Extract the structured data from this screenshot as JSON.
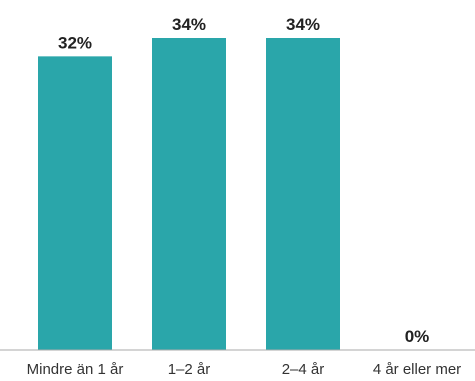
{
  "chart_data": {
    "type": "bar",
    "categories": [
      "Mindre än 1 år",
      "1–2 år",
      "2–4 år",
      "4 år eller mer"
    ],
    "values": [
      32,
      34,
      34,
      0
    ],
    "value_labels": [
      "32%",
      "34%",
      "34%",
      "0%"
    ],
    "unit": "%",
    "title": "",
    "xlabel": "",
    "ylabel": "",
    "ylim": [
      0,
      34
    ],
    "grid": false,
    "legend": "none",
    "colors": {
      "bar": "#2aa6aa",
      "baseline": "#a9a9a9",
      "text": "#222222"
    }
  }
}
